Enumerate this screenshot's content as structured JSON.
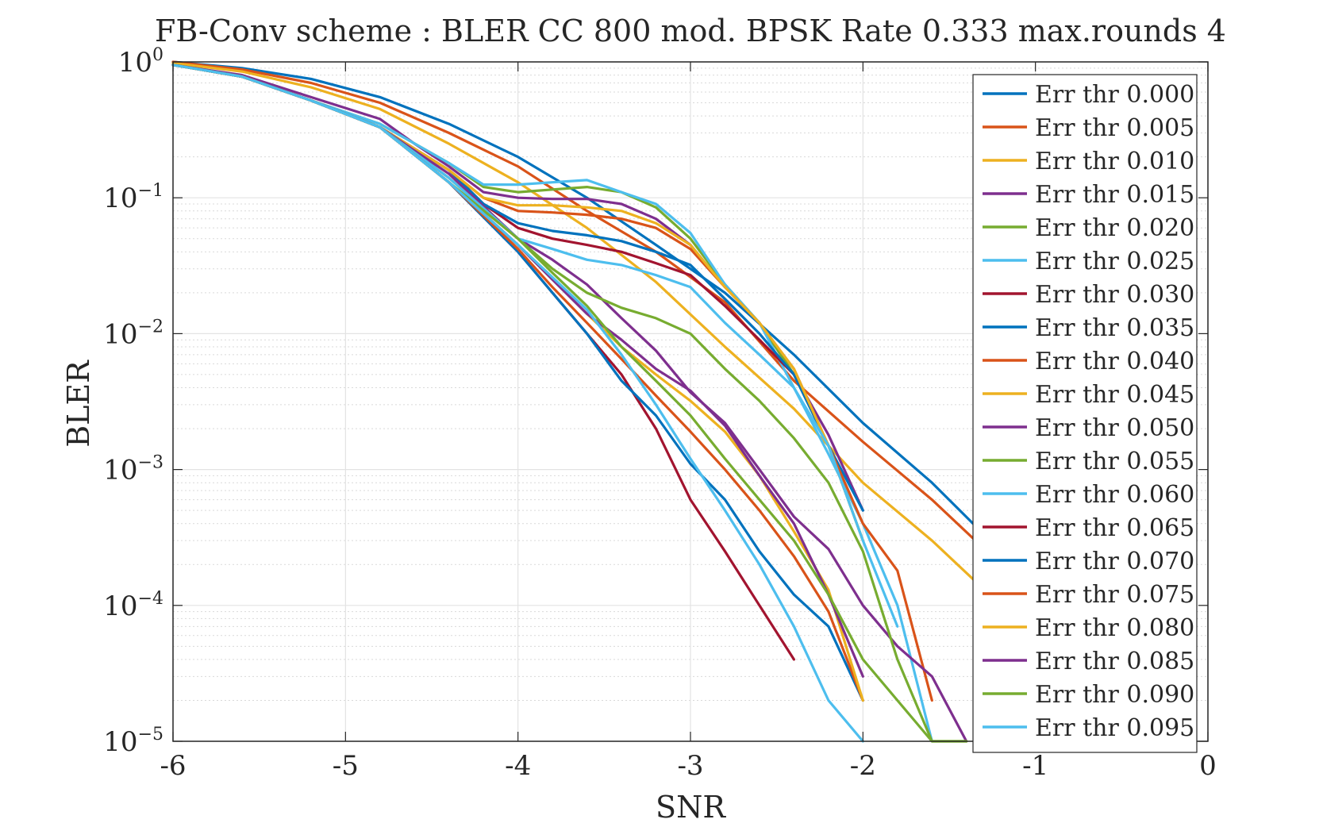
{
  "chart_data": {
    "type": "line",
    "title": "FB-Conv scheme : BLER CC 800 mod. BPSK Rate 0.333 max.rounds 4",
    "xlabel": "SNR",
    "ylabel": "BLER",
    "xlim": [
      -6,
      0
    ],
    "ylim": [
      1e-05,
      1
    ],
    "yscale": "log",
    "grid": true,
    "minor_grid": true,
    "legend_position": "right",
    "x_ticks": [
      "-6",
      "-5",
      "-4",
      "-3",
      "-2",
      "-1",
      "0"
    ],
    "y_ticks": [
      {
        "base": "10",
        "exp": "0",
        "value": 1
      },
      {
        "base": "10",
        "exp": "−1",
        "value": 0.1
      },
      {
        "base": "10",
        "exp": "−2",
        "value": 0.01
      },
      {
        "base": "10",
        "exp": "−3",
        "value": 0.001
      },
      {
        "base": "10",
        "exp": "−4",
        "value": 0.0001
      },
      {
        "base": "10",
        "exp": "−5",
        "value": 1e-05
      }
    ],
    "series": [
      {
        "name": "Err thr 0.000",
        "color": "#0072BD",
        "x": [
          -6,
          -5.6,
          -5.2,
          -4.8,
          -4.4,
          -4.0,
          -3.6,
          -3.2,
          -2.8,
          -2.4,
          -2.0,
          -1.6,
          -1.2
        ],
        "y": [
          1.0,
          0.9,
          0.75,
          0.55,
          0.35,
          0.2,
          0.1,
          0.045,
          0.02,
          0.007,
          0.0022,
          0.0008,
          0.00025
        ]
      },
      {
        "name": "Err thr 0.005",
        "color": "#D95319",
        "x": [
          -6,
          -5.6,
          -5.2,
          -4.8,
          -4.4,
          -4.0,
          -3.6,
          -3.2,
          -2.8,
          -2.4,
          -2.0,
          -1.6,
          -1.2
        ],
        "y": [
          1.0,
          0.88,
          0.7,
          0.5,
          0.3,
          0.17,
          0.08,
          0.04,
          0.017,
          0.0045,
          0.0016,
          0.0006,
          0.0002
        ]
      },
      {
        "name": "Err thr 0.010",
        "color": "#EDB120",
        "x": [
          -6,
          -5.6,
          -5.2,
          -4.8,
          -4.4,
          -4.0,
          -3.6,
          -3.2,
          -2.8,
          -2.4,
          -2.0,
          -1.6,
          -1.2
        ],
        "y": [
          0.98,
          0.85,
          0.65,
          0.45,
          0.25,
          0.13,
          0.06,
          0.024,
          0.008,
          0.0028,
          0.0008,
          0.0003,
          0.0001
        ]
      },
      {
        "name": "Err thr 0.015",
        "color": "#7E2F8E",
        "x": [
          -6,
          -5.6,
          -5.2,
          -4.8,
          -4.6,
          -4.4,
          -4.2,
          -4.0,
          -3.8,
          -3.6,
          -3.4,
          -3.2,
          -3.0,
          -2.8,
          -2.6,
          -2.4,
          -2.2,
          -2.0
        ],
        "y": [
          0.95,
          0.8,
          0.55,
          0.38,
          0.25,
          0.17,
          0.11,
          0.1,
          0.098,
          0.098,
          0.09,
          0.07,
          0.045,
          0.022,
          0.012,
          0.005,
          0.0018,
          0.0005
        ]
      },
      {
        "name": "Err thr 0.020",
        "color": "#77AC30",
        "x": [
          -6,
          -5.6,
          -5.2,
          -4.8,
          -4.4,
          -4.2,
          -4.0,
          -3.8,
          -3.6,
          -3.4,
          -3.2,
          -3.0,
          -2.8,
          -2.6,
          -2.4,
          -2.2,
          -2.0
        ],
        "y": [
          0.95,
          0.78,
          0.52,
          0.35,
          0.18,
          0.12,
          0.11,
          0.115,
          0.12,
          0.11,
          0.085,
          0.05,
          0.023,
          0.012,
          0.005,
          0.0015,
          0.0003
        ]
      },
      {
        "name": "Err thr 0.025",
        "color": "#4DBEEE",
        "x": [
          -6,
          -5.6,
          -5.2,
          -4.8,
          -4.4,
          -4.2,
          -4.0,
          -3.8,
          -3.6,
          -3.4,
          -3.2,
          -3.0,
          -2.8,
          -2.6,
          -2.4,
          -2.2,
          -2.0,
          -1.8,
          -1.6
        ],
        "y": [
          0.95,
          0.78,
          0.52,
          0.35,
          0.18,
          0.125,
          0.125,
          0.13,
          0.135,
          0.11,
          0.09,
          0.055,
          0.023,
          0.012,
          0.004,
          0.0013,
          0.0004,
          0.0001,
          1e-05
        ]
      },
      {
        "name": "Err thr 0.030",
        "color": "#A2142F",
        "x": [
          -6,
          -5.6,
          -5.2,
          -4.8,
          -4.4,
          -4.2,
          -4.0,
          -3.8,
          -3.6,
          -3.4,
          -3.2,
          -3.0,
          -2.8,
          -2.6,
          -2.4
        ],
        "y": [
          0.95,
          0.78,
          0.52,
          0.33,
          0.16,
          0.09,
          0.06,
          0.05,
          0.045,
          0.04,
          0.033,
          0.027,
          0.016,
          0.009,
          0.005
        ]
      },
      {
        "name": "Err thr 0.035",
        "color": "#0072BD",
        "x": [
          -6,
          -5.6,
          -5.2,
          -4.8,
          -4.4,
          -4.2,
          -4.0,
          -3.8,
          -3.6,
          -3.4,
          -3.2,
          -3.0,
          -2.8,
          -2.6,
          -2.4,
          -2.2,
          -2.0
        ],
        "y": [
          0.95,
          0.78,
          0.52,
          0.33,
          0.16,
          0.09,
          0.065,
          0.057,
          0.053,
          0.048,
          0.04,
          0.032,
          0.018,
          0.01,
          0.005,
          0.0015,
          0.0005
        ]
      },
      {
        "name": "Err thr 0.040",
        "color": "#D95319",
        "x": [
          -6,
          -5.6,
          -5.2,
          -4.8,
          -4.4,
          -4.2,
          -4.0,
          -3.8,
          -3.6,
          -3.4,
          -3.2,
          -3.0,
          -2.8,
          -2.6,
          -2.4,
          -2.2,
          -2.0,
          -1.8,
          -1.6
        ],
        "y": [
          0.95,
          0.78,
          0.52,
          0.33,
          0.16,
          0.1,
          0.08,
          0.078,
          0.075,
          0.07,
          0.06,
          0.042,
          0.022,
          0.012,
          0.0055,
          0.0015,
          0.0004,
          0.00018,
          2e-05
        ]
      },
      {
        "name": "Err thr 0.045",
        "color": "#EDB120",
        "x": [
          -6,
          -5.6,
          -5.2,
          -4.8,
          -4.4,
          -4.2,
          -4.0,
          -3.8,
          -3.6,
          -3.4,
          -3.2,
          -3.0,
          -2.8,
          -2.6,
          -2.4,
          -2.2,
          -2.0
        ],
        "y": [
          0.95,
          0.78,
          0.52,
          0.33,
          0.16,
          0.1,
          0.088,
          0.088,
          0.085,
          0.08,
          0.065,
          0.045,
          0.022,
          0.012,
          0.0055,
          0.0015,
          0.0003
        ]
      },
      {
        "name": "Err thr 0.050",
        "color": "#7E2F8E",
        "x": [
          -6,
          -5.6,
          -5.2,
          -4.8,
          -4.4,
          -4.0,
          -3.8,
          -3.6,
          -3.4,
          -3.2,
          -3.0,
          -2.8,
          -2.6,
          -2.4,
          -2.2,
          -2.0,
          -1.8,
          -1.6,
          -1.4
        ],
        "y": [
          0.95,
          0.78,
          0.52,
          0.33,
          0.15,
          0.05,
          0.035,
          0.023,
          0.013,
          0.0075,
          0.0037,
          0.0022,
          0.001,
          0.00045,
          0.00026,
          0.0001,
          5e-05,
          3e-05,
          1e-05
        ]
      },
      {
        "name": "Err thr 0.055",
        "color": "#77AC30",
        "x": [
          -6,
          -5.6,
          -5.2,
          -4.8,
          -4.4,
          -4.0,
          -3.8,
          -3.6,
          -3.4,
          -3.2,
          -3.0,
          -2.8,
          -2.6,
          -2.4,
          -2.2,
          -2.0,
          -1.8,
          -1.6,
          -1.4
        ],
        "y": [
          0.95,
          0.78,
          0.52,
          0.33,
          0.14,
          0.05,
          0.03,
          0.02,
          0.0155,
          0.013,
          0.01,
          0.0055,
          0.0032,
          0.0017,
          0.0008,
          0.00025,
          4e-05,
          1e-05,
          1e-05
        ]
      },
      {
        "name": "Err thr 0.060",
        "color": "#4DBEEE",
        "x": [
          -6,
          -5.6,
          -5.2,
          -4.8,
          -4.4,
          -4.0,
          -3.8,
          -3.6,
          -3.4,
          -3.2,
          -3.0,
          -2.8,
          -2.6,
          -2.4,
          -2.2,
          -2.0,
          -1.8
        ],
        "y": [
          0.95,
          0.78,
          0.52,
          0.33,
          0.14,
          0.05,
          0.042,
          0.035,
          0.032,
          0.027,
          0.022,
          0.012,
          0.007,
          0.004,
          0.0015,
          0.0003,
          7e-05
        ]
      },
      {
        "name": "Err thr 0.065",
        "color": "#A2142F",
        "x": [
          -6,
          -5.6,
          -5.2,
          -4.8,
          -4.4,
          -4.0,
          -3.8,
          -3.6,
          -3.4,
          -3.2,
          -3.0,
          -2.8,
          -2.6,
          -2.4
        ],
        "y": [
          0.95,
          0.78,
          0.52,
          0.33,
          0.13,
          0.04,
          0.02,
          0.01,
          0.005,
          0.002,
          0.0006,
          0.00025,
          0.0001,
          4e-05
        ]
      },
      {
        "name": "Err thr 0.070",
        "color": "#0072BD",
        "x": [
          -6,
          -5.6,
          -5.2,
          -4.8,
          -4.4,
          -4.0,
          -3.8,
          -3.6,
          -3.4,
          -3.2,
          -3.0,
          -2.8,
          -2.6,
          -2.4,
          -2.2,
          -2.0
        ],
        "y": [
          0.95,
          0.78,
          0.52,
          0.33,
          0.13,
          0.04,
          0.02,
          0.01,
          0.0045,
          0.0025,
          0.0011,
          0.0006,
          0.00025,
          0.00012,
          7e-05,
          2e-05
        ]
      },
      {
        "name": "Err thr 0.075",
        "color": "#D95319",
        "x": [
          -6,
          -5.6,
          -5.2,
          -4.8,
          -4.4,
          -4.0,
          -3.8,
          -3.6,
          -3.4,
          -3.2,
          -3.0,
          -2.8,
          -2.6,
          -2.4,
          -2.2,
          -2.0
        ],
        "y": [
          0.95,
          0.78,
          0.52,
          0.33,
          0.13,
          0.042,
          0.022,
          0.012,
          0.0065,
          0.0035,
          0.0019,
          0.001,
          0.0005,
          0.00023,
          9e-05,
          2e-05
        ]
      },
      {
        "name": "Err thr 0.080",
        "color": "#EDB120",
        "x": [
          -6,
          -5.6,
          -5.2,
          -4.8,
          -4.4,
          -4.0,
          -3.8,
          -3.6,
          -3.4,
          -3.2,
          -3.0,
          -2.8,
          -2.6,
          -2.4,
          -2.2,
          -2.0
        ],
        "y": [
          0.95,
          0.78,
          0.52,
          0.33,
          0.13,
          0.045,
          0.025,
          0.014,
          0.008,
          0.005,
          0.0032,
          0.0019,
          0.0009,
          0.00035,
          0.00013,
          2e-05
        ]
      },
      {
        "name": "Err thr 0.085",
        "color": "#7E2F8E",
        "x": [
          -6,
          -5.6,
          -5.2,
          -4.8,
          -4.4,
          -4.0,
          -3.8,
          -3.6,
          -3.4,
          -3.2,
          -3.0,
          -2.8,
          -2.6,
          -2.4,
          -2.2,
          -2.0
        ],
        "y": [
          0.95,
          0.78,
          0.52,
          0.33,
          0.13,
          0.045,
          0.025,
          0.014,
          0.009,
          0.0055,
          0.0038,
          0.0021,
          0.0009,
          0.0004,
          0.00012,
          3e-05
        ]
      },
      {
        "name": "Err thr 0.090",
        "color": "#77AC30",
        "x": [
          -6,
          -5.6,
          -5.2,
          -4.8,
          -4.4,
          -4.0,
          -3.8,
          -3.6,
          -3.4,
          -3.2,
          -3.0,
          -2.8,
          -2.6,
          -2.4,
          -2.2,
          -2.0,
          -1.8,
          -1.6,
          -1.4
        ],
        "y": [
          0.95,
          0.78,
          0.52,
          0.33,
          0.13,
          0.05,
          0.028,
          0.016,
          0.008,
          0.0045,
          0.0025,
          0.0012,
          0.0006,
          0.0003,
          0.00012,
          4e-05,
          2e-05,
          1e-05,
          1e-05
        ]
      },
      {
        "name": "Err thr 0.095",
        "color": "#4DBEEE",
        "x": [
          -6,
          -5.6,
          -5.2,
          -4.8,
          -4.4,
          -4.0,
          -3.8,
          -3.6,
          -3.4,
          -3.2,
          -3.0,
          -2.8,
          -2.6,
          -2.4,
          -2.2,
          -2.0
        ],
        "y": [
          0.95,
          0.78,
          0.52,
          0.33,
          0.13,
          0.045,
          0.026,
          0.015,
          0.007,
          0.003,
          0.0012,
          0.0005,
          0.0002,
          7e-05,
          2e-05,
          1e-05
        ]
      }
    ]
  }
}
